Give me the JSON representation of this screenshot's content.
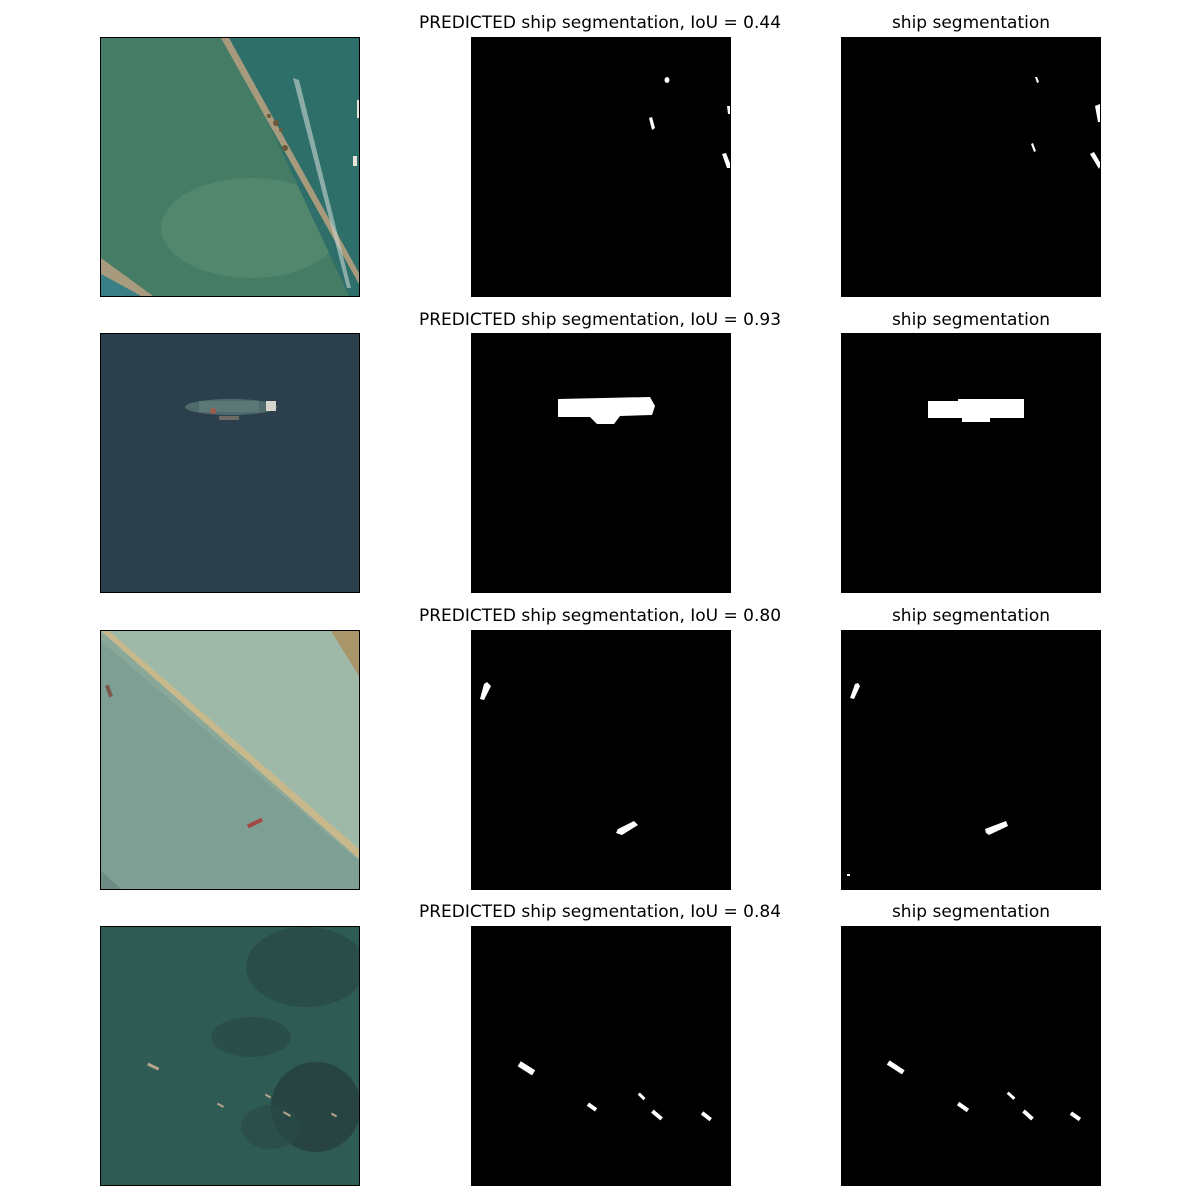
{
  "rows": [
    {
      "pred_title": "PREDICTED ship segmentation, IoU = 0.44",
      "gt_title": "ship segmentation",
      "iou": 0.44
    },
    {
      "pred_title": "PREDICTED ship segmentation, IoU = 0.93",
      "gt_title": "ship segmentation",
      "iou": 0.93
    },
    {
      "pred_title": "PREDICTED ship segmentation, IoU = 0.80",
      "gt_title": "ship segmentation",
      "iou": 0.8
    },
    {
      "pred_title": "PREDICTED ship segmentation, IoU = 0.84",
      "gt_title": "ship segmentation",
      "iou": 0.84
    }
  ],
  "colors": {
    "mask_background": "#000000",
    "mask_foreground": "#ffffff",
    "row1_water": "#3f7a66",
    "row2_water": "#2c3f4c",
    "row3_water": "#8ea99c",
    "row4_water": "#2e5a55"
  }
}
